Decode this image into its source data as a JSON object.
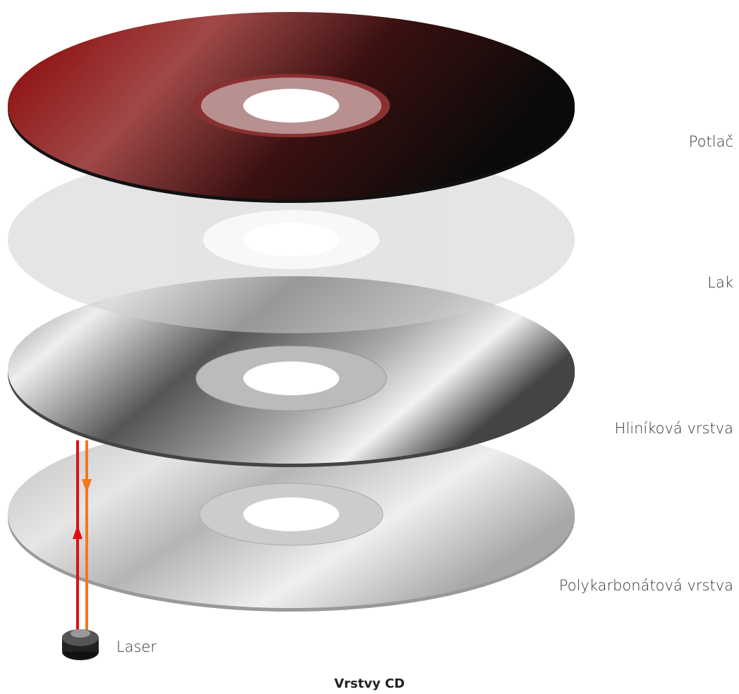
{
  "layers": [
    {
      "label": "Potlač"
    },
    {
      "label": "Lak"
    },
    {
      "label": "Hliníková vrstva"
    },
    {
      "label": "Polykarbonátová vrstva"
    }
  ],
  "laser": {
    "label": "Laser"
  },
  "caption": "Vrstvy CD"
}
